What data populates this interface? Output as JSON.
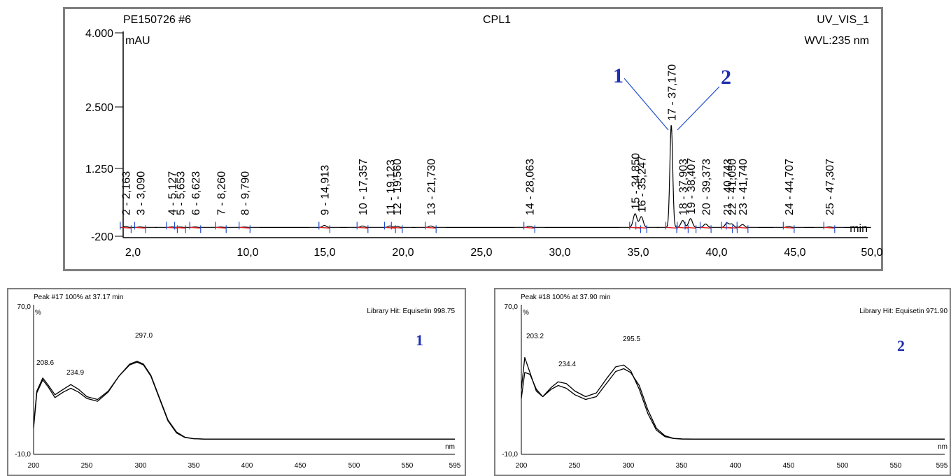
{
  "chromatogram": {
    "sample": "PE150726 #6",
    "method": "CPL1",
    "detector": "UV_VIS_1",
    "wavelength": "WVL:235 nm",
    "y_unit": "mAU",
    "x_unit": "min",
    "y_ticks": [
      "4.000",
      "2.500",
      "1.250",
      "-200"
    ],
    "x_ticks": [
      "2,0",
      "10,0",
      "15,0",
      "20,0",
      "25,0",
      "30,0",
      "35,0",
      "40,0",
      "45,0",
      "50,0"
    ],
    "peak_labels": [
      "2 - 2,163",
      "3 - 3,090",
      "4 - 5,127",
      "5 - 5,653",
      "6 - 6,623",
      "7 - 8,260",
      "8 - 9,790",
      "9 - 14,913",
      "10 - 17,357",
      "11 - 19,123",
      "12 - 19,560",
      "13 - 21,730",
      "14 - 28,063",
      "15 - 34,850",
      "16 - 35,247",
      "17 - 37,170",
      "18 - 37,903",
      "19 - 38,407",
      "20 - 39,373",
      "21 - 40,743",
      "22 - 41,050",
      "23 - 41,740",
      "24 - 44,707",
      "25 - 47,307"
    ],
    "callouts": [
      "1",
      "2"
    ]
  },
  "spectrum_1": {
    "header": "Peak #17   100% at 37.17 min",
    "library_hit": "Library Hit: Equisetin 998.75",
    "panel_label": "1",
    "y_top": "70,0",
    "y_unit": "%",
    "y_bottom": "-10,0",
    "x_unit": "nm",
    "x_ticks": [
      "200",
      "250",
      "300",
      "350",
      "400",
      "450",
      "500",
      "550",
      "595"
    ],
    "maxima_labels": [
      "208.6",
      "234.9",
      "297.0"
    ]
  },
  "spectrum_2": {
    "header": "Peak #18   100% at 37.90 min",
    "library_hit": "Library Hit: Equisetin 971.90",
    "panel_label": "2",
    "y_top": "70,0",
    "y_unit": "%",
    "y_bottom": "-10,0",
    "x_unit": "nm",
    "x_ticks": [
      "200",
      "250",
      "300",
      "350",
      "400",
      "450",
      "500",
      "550",
      "595"
    ],
    "maxima_labels": [
      "203.2",
      "234.4",
      "295.5"
    ]
  },
  "chart_data": [
    {
      "type": "line",
      "title": "CPL1",
      "xlabel": "min",
      "ylabel": "mAU",
      "xlim": [
        2.0,
        50.0
      ],
      "ylim": [
        -200,
        4000
      ],
      "series": [
        {
          "peaks_rt": [
            2.163,
            3.09,
            5.127,
            5.653,
            6.623,
            8.26,
            9.79,
            14.913,
            17.357,
            19.123,
            19.56,
            21.73,
            28.063,
            34.85,
            35.247,
            37.17,
            37.903,
            38.407,
            39.373,
            40.743,
            41.05,
            41.74,
            44.707,
            47.307
          ],
          "peaks_height": [
            20,
            10,
            10,
            8,
            10,
            8,
            8,
            40,
            30,
            30,
            25,
            30,
            25,
            280,
            220,
            2100,
            140,
            180,
            70,
            90,
            70,
            60,
            20,
            10
          ]
        }
      ]
    },
    {
      "type": "line",
      "title": "Peak #17   100% at 37.17 min",
      "xlabel": "nm",
      "ylabel": "%",
      "xlim": [
        200,
        595
      ],
      "ylim": [
        -10,
        70
      ],
      "series": [
        {
          "x": [
            200,
            203,
            208.6,
            214,
            220,
            228,
            234.9,
            242,
            250,
            260,
            270,
            280,
            290,
            297,
            303,
            310,
            318,
            326,
            334,
            342,
            350,
            360,
            400,
            450,
            500,
            550,
            595
          ],
          "y": [
            5,
            24,
            31,
            27,
            22,
            25,
            27.5,
            25,
            21,
            19.5,
            24,
            32,
            38,
            39.5,
            38,
            32,
            20,
            8,
            1.5,
            -1,
            -1.6,
            -1.8,
            -1.8,
            -1.8,
            -1.8,
            -1.8,
            -1.8
          ]
        },
        {
          "x": [
            200,
            203,
            208.6,
            214,
            220,
            228,
            234.9,
            242,
            250,
            260,
            270,
            280,
            290,
            297,
            303,
            310,
            318,
            326,
            334,
            342,
            350,
            360,
            400,
            450,
            500,
            550,
            595
          ],
          "y": [
            4,
            23,
            30,
            26,
            20.5,
            23.5,
            25.5,
            23.5,
            20,
            18.5,
            23.5,
            32,
            38.5,
            40,
            38.5,
            32.5,
            20.5,
            8.5,
            2,
            -0.8,
            -1.6,
            -1.8,
            -1.8,
            -1.8,
            -1.8,
            -1.8,
            -1.8
          ]
        }
      ]
    },
    {
      "type": "line",
      "title": "Peak #18   100% at 37.90 min",
      "xlabel": "nm",
      "ylabel": "%",
      "xlim": [
        200,
        595
      ],
      "ylim": [
        -10,
        70
      ],
      "series": [
        {
          "x": [
            200,
            203.2,
            208,
            214,
            220,
            228,
            234.4,
            242,
            250,
            260,
            270,
            280,
            288,
            295.5,
            302,
            310,
            318,
            326,
            334,
            342,
            350,
            360,
            400,
            450,
            500,
            550,
            595
          ],
          "y": [
            25,
            42,
            34,
            24,
            21,
            26,
            29,
            28,
            24,
            21,
            23,
            31,
            37,
            38,
            35,
            25,
            12,
            3,
            -0.5,
            -1.5,
            -1.8,
            -1.8,
            -1.8,
            -1.8,
            -1.8,
            -1.8,
            -1.8
          ]
        },
        {
          "x": [
            200,
            203.2,
            208,
            214,
            220,
            228,
            234.4,
            242,
            250,
            260,
            270,
            280,
            288,
            295.5,
            302,
            310,
            318,
            326,
            334,
            342,
            350,
            360,
            400,
            450,
            500,
            550,
            595
          ],
          "y": [
            20,
            34,
            33,
            25,
            21,
            25,
            27,
            25.5,
            22,
            19.5,
            21,
            28.5,
            34.5,
            36,
            34,
            27,
            14,
            4,
            0,
            -1.4,
            -1.7,
            -1.8,
            -1.8,
            -1.8,
            -1.8,
            -1.8,
            -1.8
          ]
        }
      ]
    }
  ]
}
